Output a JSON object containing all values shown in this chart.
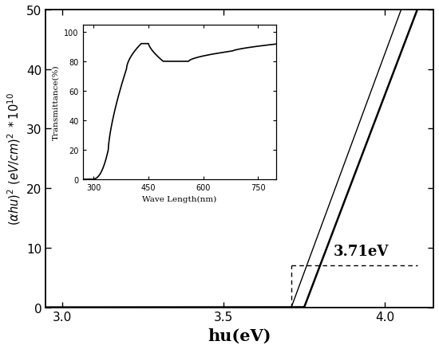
{
  "main": {
    "xlabel": "hu(eV)",
    "ylabel": "(\\u03b1hu)^2  (eV/cm)^2  *10^10",
    "xlim": [
      2.95,
      4.15
    ],
    "ylim": [
      0,
      50
    ],
    "xticks": [
      3.0,
      3.5,
      4.0
    ],
    "yticks": [
      0,
      10,
      20,
      30,
      40,
      50
    ],
    "bandgap": 3.71,
    "annotation": "3.71eV"
  },
  "inset": {
    "xlim": [
      270,
      800
    ],
    "ylim": [
      0,
      105
    ],
    "xticks": [
      300,
      450,
      600,
      750
    ],
    "yticks": [
      0,
      20,
      40,
      60,
      80,
      100
    ],
    "xlabel": "Wave Length(nm)",
    "ylabel": "Transmittance(%)"
  }
}
